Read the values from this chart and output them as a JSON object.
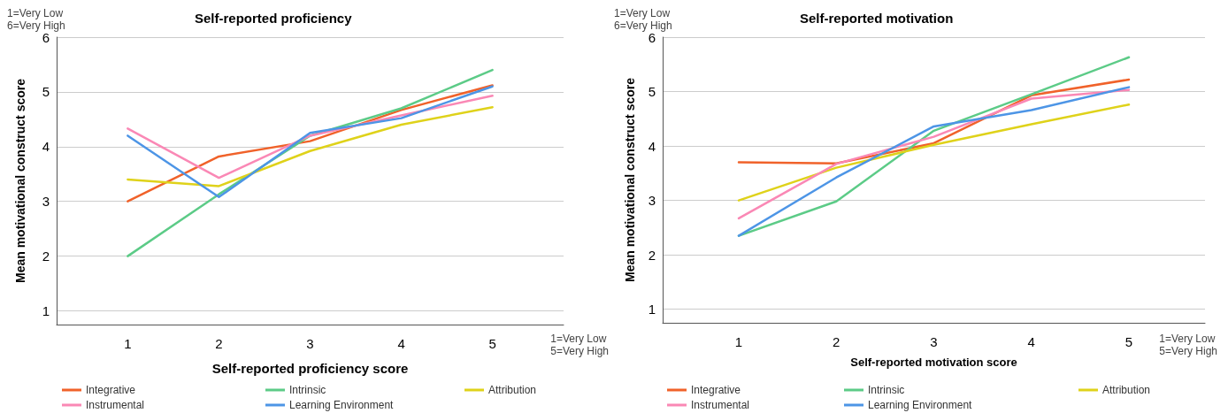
{
  "chart_data": [
    {
      "type": "line",
      "title": "Self-reported proficiency",
      "xlabel": "Self-reported proficiency score",
      "ylabel": "Mean motivational construct score",
      "annotations": [
        "1=Very Low\n6=Very High",
        "1=Very Low\n5=Very High"
      ],
      "x": [
        1,
        2,
        3,
        4,
        5
      ],
      "xlim": [
        0.22,
        5.78
      ],
      "xticks": [
        1,
        2,
        3,
        4,
        5
      ],
      "ylim": [
        0.75,
        6
      ],
      "yticks": [
        1,
        2,
        3,
        4,
        5,
        6
      ],
      "grid": "y",
      "legend": "bottom",
      "marker": "none",
      "line_style": "solid",
      "series": [
        {
          "name": "Integrative",
          "color": "#f0622a",
          "values": [
            3.0,
            3.82,
            4.1,
            4.67,
            5.12
          ]
        },
        {
          "name": "Intrinsic",
          "color": "#5ccb87",
          "values": [
            2.0,
            3.13,
            4.2,
            4.7,
            5.4
          ]
        },
        {
          "name": "Attribution",
          "color": "#dfd21a",
          "values": [
            3.4,
            3.28,
            3.92,
            4.4,
            4.72
          ]
        },
        {
          "name": "Instrumental",
          "color": "#fa88b5",
          "values": [
            4.33,
            3.43,
            4.2,
            4.57,
            4.93
          ]
        },
        {
          "name": "Learning Environment",
          "color": "#4d95e6",
          "values": [
            4.2,
            3.08,
            4.25,
            4.52,
            5.1
          ]
        }
      ]
    },
    {
      "type": "line",
      "title": "Self-reported motivation",
      "xlabel": "Self-reported motivation score",
      "ylabel": "Mean motivational construct score",
      "annotations": [
        "1=Very Low\n6=Very High",
        "1=Very Low\n5=Very High"
      ],
      "x": [
        1,
        2,
        3,
        4,
        5
      ],
      "xlim": [
        0.22,
        5.78
      ],
      "xticks": [
        1,
        2,
        3,
        4,
        5
      ],
      "ylim": [
        0.75,
        6
      ],
      "yticks": [
        1,
        2,
        3,
        4,
        5,
        6
      ],
      "grid": "y",
      "legend": "bottom",
      "marker": "none",
      "line_style": "solid",
      "series": [
        {
          "name": "Integrative",
          "color": "#f0622a",
          "values": [
            3.7,
            3.68,
            4.05,
            4.93,
            5.22
          ]
        },
        {
          "name": "Intrinsic",
          "color": "#5ccb87",
          "values": [
            2.35,
            2.98,
            4.28,
            4.95,
            5.63
          ]
        },
        {
          "name": "Attribution",
          "color": "#dfd21a",
          "values": [
            3.0,
            3.6,
            4.02,
            4.4,
            4.76
          ]
        },
        {
          "name": "Instrumental",
          "color": "#fa88b5",
          "values": [
            2.67,
            3.67,
            4.17,
            4.87,
            5.03
          ]
        },
        {
          "name": "Learning Environment",
          "color": "#4d95e6",
          "values": [
            2.35,
            3.42,
            4.36,
            4.66,
            5.08
          ]
        }
      ]
    }
  ]
}
